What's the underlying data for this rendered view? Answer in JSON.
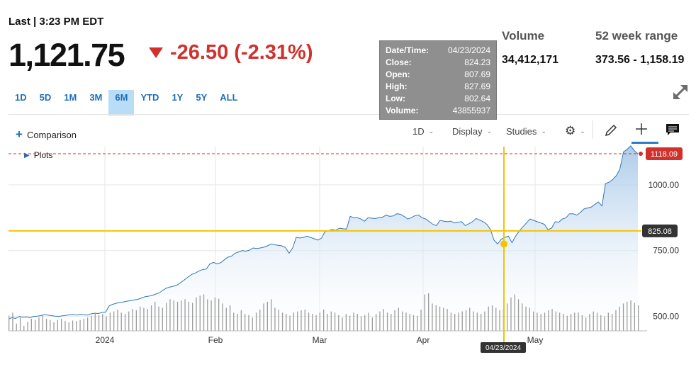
{
  "header": {
    "last_label": "Last | 3:23 PM EDT",
    "price": "1,121.75",
    "change": "-26.50 (-2.31%)",
    "volume_label": "Volume",
    "volume_value": "34,412,171",
    "range_label": "52 week range",
    "range_value": "373.56 - 1,158.19"
  },
  "ranges": [
    "1D",
    "5D",
    "1M",
    "3M",
    "6M",
    "YTD",
    "1Y",
    "5Y",
    "ALL"
  ],
  "active_range": "6M",
  "toolbar": {
    "comparison": "Comparison",
    "interval": "1D",
    "display": "Display",
    "studies": "Studies",
    "plots": "Plots"
  },
  "tooltip": {
    "date_label": "Date/Time:",
    "date": "04/23/2024",
    "close_label": "Close:",
    "close": "824.23",
    "open_label": "Open:",
    "open": "807.69",
    "high_label": "High:",
    "high": "827.69",
    "low_label": "Low:",
    "low": "802.64",
    "volume_label": "Volume:",
    "volume": "43855937"
  },
  "chart_data": {
    "type": "area",
    "y_ticks": [
      "1000.00",
      "750.00",
      "500.00"
    ],
    "x_ticks": [
      "2024",
      "Feb",
      "Mar",
      "Apr",
      "May"
    ],
    "last_price_tag": "1118.09",
    "crosshair_price": "825.08",
    "crosshair_date": "04/23/2024",
    "ylim": [
      445,
      1145
    ],
    "colors": {
      "line": "#2f78b7",
      "fill_top": "#a9c9e8",
      "down": "#d0312d",
      "crosshair": "#f5c400"
    },
    "series": [
      {
        "values": [
          490,
          495,
          492,
          500,
          497,
          498,
          495,
          500,
          501,
          503,
          507,
          505,
          503,
          501,
          500,
          502,
          504,
          506,
          507,
          505,
          508,
          506,
          505,
          510,
          512,
          511,
          515,
          516,
          540,
          546,
          550,
          553,
          555,
          558,
          560,
          563,
          565,
          570,
          575,
          577,
          580,
          585,
          590,
          600,
          608,
          612,
          615,
          620,
          630,
          640,
          650,
          660,
          665,
          673,
          678,
          680,
          700,
          705,
          700,
          704,
          715,
          725,
          729,
          740,
          745,
          750,
          748,
          752,
          760,
          758,
          760,
          763,
          768,
          775,
          772,
          770,
          768,
          762,
          740,
          760,
          800,
          798,
          800,
          805,
          800,
          795,
          790,
          797,
          822,
          826,
          830,
          827,
          835,
          833,
          832,
          880,
          875,
          875,
          870,
          862,
          875,
          873,
          872,
          875,
          877,
          885,
          880,
          882,
          890,
          888,
          880,
          870,
          875,
          883,
          885,
          875,
          870,
          860,
          850,
          845,
          865,
          862,
          860,
          862,
          855,
          858,
          860,
          845,
          852,
          860,
          872,
          866,
          860,
          850,
          830,
          790,
          775,
          793,
          800,
          805,
          780,
          805,
          824,
          840,
          855,
          870,
          865,
          860,
          855,
          850,
          830,
          835,
          860,
          858,
          870,
          875,
          890,
          890,
          885,
          895,
          908,
          912,
          915,
          925,
          935,
          920,
          1005,
          1010,
          1020,
          1035,
          1060,
          1125,
          1135,
          1148,
          1130,
          1118
        ]
      }
    ],
    "volume_bars": [
      25,
      30,
      12,
      22,
      8,
      15,
      20,
      18,
      22,
      25,
      20,
      18,
      14,
      18,
      20,
      16,
      14,
      17,
      16,
      18,
      20,
      22,
      25,
      30,
      26,
      28,
      24,
      30,
      32,
      35,
      30,
      28,
      32,
      36,
      34,
      40,
      38,
      36,
      42,
      48,
      40,
      38,
      46,
      52,
      50,
      48,
      50,
      52,
      48,
      46,
      55,
      58,
      60,
      52,
      50,
      55,
      53,
      45,
      38,
      42,
      30,
      28,
      34,
      28,
      26,
      22,
      30,
      35,
      45,
      48,
      52,
      38,
      35,
      30,
      28,
      25,
      30,
      32,
      34,
      35,
      30,
      28,
      26,
      30,
      35,
      28,
      32,
      30,
      26,
      22,
      28,
      25,
      30,
      28,
      24,
      26,
      30,
      22,
      28,
      32,
      36,
      30,
      28,
      34,
      38,
      32,
      30,
      28,
      26,
      25,
      35,
      60,
      62,
      45,
      42,
      40,
      38,
      36,
      30,
      28,
      30,
      32,
      34,
      38,
      32,
      30,
      28,
      32,
      40,
      42,
      38,
      34,
      36,
      45,
      55,
      60,
      52,
      45,
      40,
      38,
      32,
      30,
      28,
      30,
      34,
      36,
      32,
      30,
      28,
      25,
      28,
      30,
      30,
      26,
      22,
      28,
      32,
      30,
      26,
      24,
      30,
      28,
      34,
      40,
      45,
      48,
      50,
      46,
      42
    ]
  }
}
